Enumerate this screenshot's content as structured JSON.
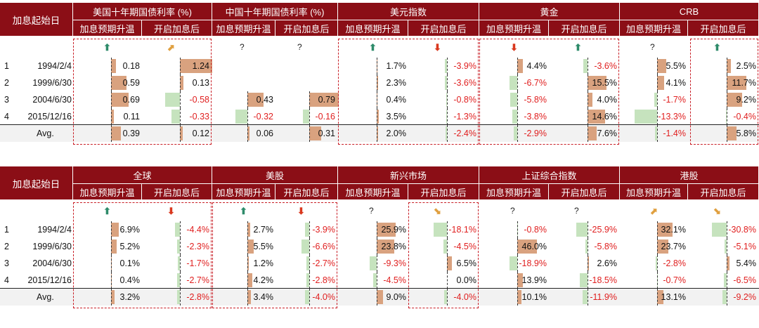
{
  "chart_data": [
    {
      "type": "table",
      "row_header": "加息起始日",
      "sub_headers": [
        "加息预期升温",
        "开启加息后"
      ],
      "groups": [
        {
          "name": "美国十年期国债利率 (%)",
          "signals": [
            "up",
            "diag-up"
          ],
          "pre": [
            "0.18",
            "0.59",
            "0.69",
            "0.11",
            "0.39"
          ],
          "post": [
            "1.24",
            "0.13",
            "-0.58",
            "-0.33",
            "0.12"
          ],
          "pre_v": [
            0.18,
            0.59,
            0.69,
            0.11,
            0.39
          ],
          "post_v": [
            1.24,
            0.13,
            -0.58,
            -0.33,
            0.12
          ],
          "scale": 1.3
        },
        {
          "name": "中国十年期国债利率 (%)",
          "signals": [
            "?",
            "?"
          ],
          "pre": [
            "",
            "",
            "0.43",
            "-0.32",
            "0.06"
          ],
          "post": [
            "",
            "",
            "0.79",
            "-0.16",
            "0.31"
          ],
          "pre_v": [
            null,
            null,
            0.43,
            -0.32,
            0.06
          ],
          "post_v": [
            null,
            null,
            0.79,
            -0.16,
            0.31
          ],
          "scale": 0.9
        },
        {
          "name": "美元指数",
          "signals": [
            "up",
            "down"
          ],
          "pre": [
            "1.7%",
            "2.3%",
            "0.4%",
            "3.5%",
            "2.0%"
          ],
          "post": [
            "-3.9%",
            "-3.6%",
            "-0.8%",
            "-1.3%",
            "-2.4%"
          ],
          "pre_v": [
            1.7,
            2.3,
            0.4,
            3.5,
            2.0
          ],
          "post_v": [
            -3.9,
            -3.6,
            -0.8,
            -1.3,
            -2.4
          ],
          "scale": 60
        },
        {
          "name": "黄金",
          "signals": [
            "down",
            "up"
          ],
          "pre": [
            "4.4%",
            "-6.7%",
            "-5.8%",
            "-3.8%",
            "-2.9%"
          ],
          "post": [
            "-3.6%",
            "15.5%",
            "4.0%",
            "14.6%",
            "7.6%"
          ],
          "pre_v": [
            4.4,
            -6.7,
            -5.8,
            -3.8,
            -2.9
          ],
          "post_v": [
            -3.6,
            15.5,
            4.0,
            14.6,
            7.6
          ],
          "scale": 28
        },
        {
          "name": "CRB",
          "signals": [
            "?",
            "up"
          ],
          "pre": [
            "5.5%",
            "4.1%",
            "-1.7%",
            "-13.3%",
            "-1.4%"
          ],
          "post": [
            "2.5%",
            "11.7%",
            "9.2%",
            "-0.4%",
            "5.8%"
          ],
          "pre_v": [
            5.5,
            4.1,
            -1.7,
            -13.3,
            -1.4
          ],
          "post_v": [
            2.5,
            11.7,
            9.2,
            -0.4,
            5.8
          ],
          "scale": 20
        }
      ],
      "dates": [
        "1994/2/4",
        "1999/6/30",
        "2004/6/30",
        "2015/12/16",
        "Avg."
      ],
      "indices": [
        "1",
        "2",
        "3",
        "4",
        ""
      ]
    },
    {
      "type": "table",
      "row_header": "加息起始日",
      "sub_headers": [
        "加息预期升温",
        "开启加息后"
      ],
      "groups": [
        {
          "name": "全球",
          "signals": [
            "up",
            "down"
          ],
          "pre": [
            "6.9%",
            "5.2%",
            "0.1%",
            "0.4%",
            "3.2%"
          ],
          "post": [
            "-4.4%",
            "-2.3%",
            "-1.7%",
            "-2.7%",
            "-2.8%"
          ],
          "pre_v": [
            6.9,
            5.2,
            0.1,
            0.4,
            3.2
          ],
          "post_v": [
            -4.4,
            -2.3,
            -1.7,
            -2.7,
            -2.8
          ],
          "scale": 30
        },
        {
          "name": "美股",
          "signals": [
            "up",
            "down"
          ],
          "pre": [
            "2.7%",
            "5.5%",
            "1.2%",
            "4.2%",
            "3.4%"
          ],
          "post": [
            "-3.9%",
            "-6.6%",
            "-2.7%",
            "-2.8%",
            "-4.0%"
          ],
          "pre_v": [
            2.7,
            5.5,
            1.2,
            4.2,
            3.4
          ],
          "post_v": [
            -3.9,
            -6.6,
            -2.7,
            -2.8,
            -4.0
          ],
          "scale": 30
        },
        {
          "name": "新兴市场",
          "signals": [
            "?",
            "diag-down"
          ],
          "pre": [
            "25.9%",
            "23.8%",
            "-9.3%",
            "-4.5%",
            "9.0%"
          ],
          "post": [
            "-18.1%",
            "-4.5%",
            "6.5%",
            "0.0%",
            "-4.0%"
          ],
          "pre_v": [
            25.9,
            23.8,
            -9.3,
            -4.5,
            9.0
          ],
          "post_v": [
            -18.1,
            -4.5,
            6.5,
            0.0,
            -4.0
          ],
          "scale": 46
        },
        {
          "name": "上证综合指数",
          "signals": [
            "?",
            "?"
          ],
          "pre": [
            "-0.8%",
            "46.0%",
            "-18.9%",
            "13.9%",
            "10.1%"
          ],
          "post": [
            "-25.9%",
            "-5.8%",
            "2.6%",
            "-18.5%",
            "-11.9%"
          ],
          "pre_v": [
            -0.8,
            46.0,
            -18.9,
            13.9,
            10.1
          ],
          "post_v": [
            -25.9,
            -5.8,
            2.6,
            -18.5,
            -11.9
          ],
          "scale": 80
        },
        {
          "name": "港股",
          "signals": [
            "diag-up",
            "diag-down"
          ],
          "pre": [
            "32.1%",
            "23.7%",
            "-2.8%",
            "-0.7%",
            "13.1%"
          ],
          "post": [
            "-30.8%",
            "-5.1%",
            "5.4%",
            "-6.5%",
            "-9.2%"
          ],
          "pre_v": [
            32.1,
            23.7,
            -2.8,
            -0.7,
            13.1
          ],
          "post_v": [
            -30.8,
            -5.1,
            5.4,
            -6.5,
            -9.2
          ],
          "scale": 70
        }
      ],
      "dates": [
        "1994/2/4",
        "1999/6/30",
        "2004/6/30",
        "2015/12/16",
        "Avg."
      ],
      "indices": [
        "1",
        "2",
        "3",
        "4",
        ""
      ]
    }
  ],
  "colors": {
    "header": "#8B0E16",
    "positive_bar": "#D9A27F",
    "negative_bar": "#C6E3BE",
    "negative_text": "#E02020",
    "box": "#C81D25",
    "up_arrow": "#2E8B6A",
    "down_arrow": "#D9381E",
    "diag_arrow": "#E0A040"
  }
}
